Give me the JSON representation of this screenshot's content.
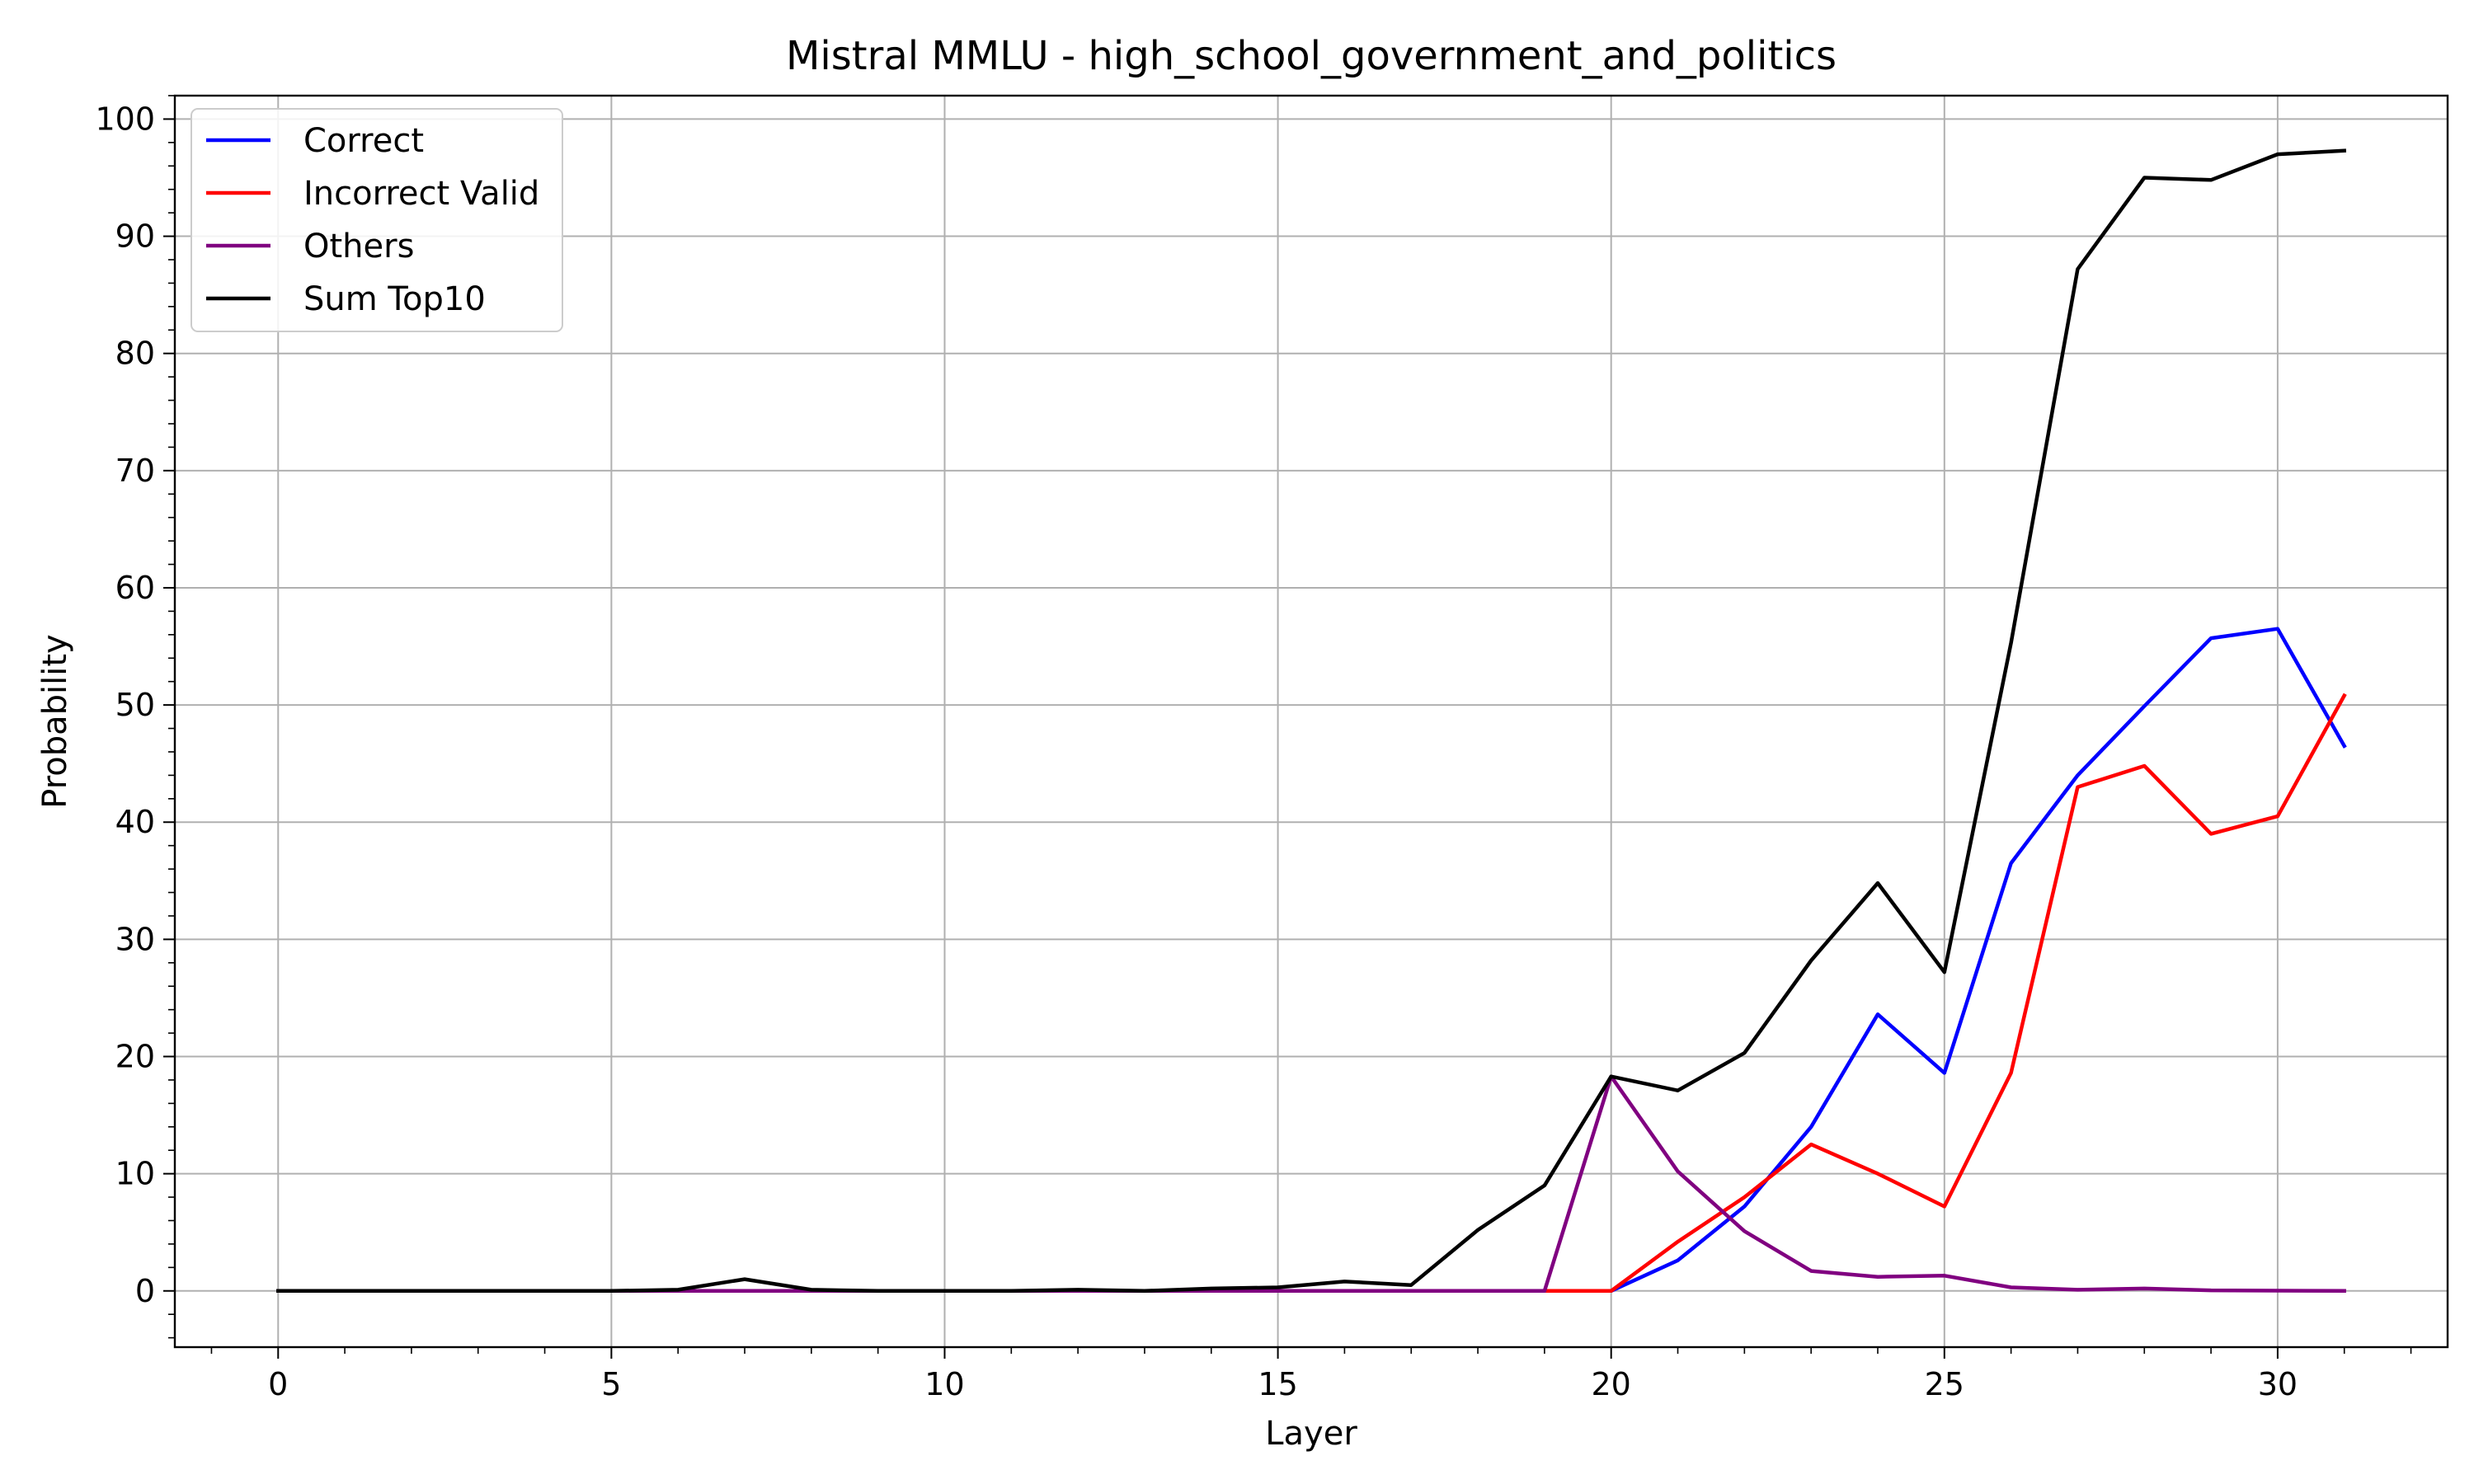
{
  "chart_data": {
    "type": "line",
    "title": "Mistral MMLU - high_school_government_and_politics",
    "xlabel": "Layer",
    "ylabel": "Probability",
    "xlim": [
      -1.55,
      32.55
    ],
    "ylim": [
      -4.8,
      102
    ],
    "xticks": [
      "0",
      "5",
      "10",
      "15",
      "20",
      "25",
      "30"
    ],
    "yticks": [
      "0",
      "10",
      "20",
      "30",
      "40",
      "50",
      "60",
      "70",
      "80",
      "90",
      "100"
    ],
    "grid": true,
    "legend_position": "top-left",
    "x": [
      0,
      1,
      2,
      3,
      4,
      5,
      6,
      7,
      8,
      9,
      10,
      11,
      12,
      13,
      14,
      15,
      16,
      17,
      18,
      19,
      20,
      21,
      22,
      23,
      24,
      25,
      26,
      27,
      28,
      29,
      30,
      31
    ],
    "series": [
      {
        "name": "Correct",
        "color": "#0000ff",
        "values": [
          0,
          0,
          0,
          0,
          0,
          0,
          0,
          0,
          0,
          0,
          0,
          0,
          0,
          0,
          0,
          0,
          0,
          0,
          0,
          0,
          0,
          2.6,
          7.2,
          14.0,
          23.6,
          18.6,
          36.5,
          44.0,
          49.9,
          55.7,
          56.5,
          46.5
        ]
      },
      {
        "name": "Incorrect Valid",
        "color": "#ff0000",
        "values": [
          0,
          0,
          0,
          0,
          0,
          0,
          0,
          0,
          0,
          0,
          0,
          0,
          0,
          0,
          0,
          0,
          0,
          0,
          0,
          0,
          0,
          4.2,
          8.0,
          12.5,
          10.0,
          7.2,
          18.6,
          43.0,
          44.8,
          39.0,
          40.5,
          50.8
        ]
      },
      {
        "name": "Others",
        "color": "#800080",
        "values": [
          0,
          0,
          0,
          0,
          0,
          0,
          0,
          0,
          0,
          0,
          0,
          0,
          0,
          0,
          0,
          0,
          0,
          0,
          0,
          0,
          18.3,
          10.2,
          5.1,
          1.7,
          1.2,
          1.3,
          0.3,
          0.1,
          0.2,
          0.05,
          0.02,
          0.0
        ]
      },
      {
        "name": "Sum Top10",
        "color": "#000000",
        "values": [
          0,
          0,
          0,
          0,
          0,
          0,
          0.1,
          1.0,
          0.1,
          0,
          0,
          0,
          0.1,
          0,
          0.2,
          0.3,
          0.8,
          0.5,
          5.2,
          9.0,
          18.3,
          17.1,
          20.3,
          28.2,
          34.8,
          27.2,
          55.3,
          87.2,
          95.0,
          94.8,
          97.0,
          97.3
        ]
      }
    ]
  }
}
